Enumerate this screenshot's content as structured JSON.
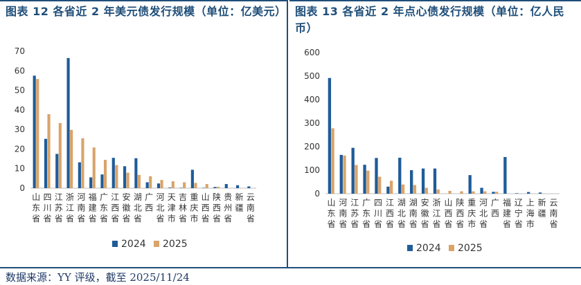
{
  "colors": {
    "series2024": "#1f5c99",
    "series2025": "#d9a46a",
    "accent": "#1f4e79"
  },
  "source": "数据来源：YY 评级，截至 2025/11/24",
  "chart_data": [
    {
      "type": "bar",
      "title": "图表 12 各省近 2 年美元债发行规模（单位：亿美元）",
      "xlabel": "",
      "ylabel": "",
      "ylim": [
        0,
        70
      ],
      "yticks": [
        0,
        10,
        20,
        30,
        40,
        50,
        60,
        70
      ],
      "legend_position": "bottom",
      "grid": false,
      "categories": [
        "山东省",
        "四川省",
        "江苏省",
        "浙江省",
        "河南省",
        "福建省",
        "广东省",
        "江西省",
        "安徽省",
        "湖北省",
        "广西",
        "河北省",
        "天津市",
        "吉林省",
        "重庆市",
        "山西省",
        "陕西省",
        "贵州省",
        "新疆",
        "云南省"
      ],
      "series": [
        {
          "name": "2024",
          "values": [
            57.5,
            25.2,
            17.5,
            66.5,
            13.2,
            5.5,
            7.0,
            15.5,
            11.2,
            15.3,
            3.0,
            2.4,
            0.3,
            0.2,
            9.4,
            0.2,
            0.6,
            2.1,
            1.5,
            0.9
          ]
        },
        {
          "name": "2025",
          "values": [
            55.8,
            37.8,
            33.3,
            29.8,
            25.5,
            20.8,
            14.5,
            11.8,
            7.9,
            6.8,
            6.1,
            4.2,
            3.5,
            3.0,
            2.7,
            2.1,
            0.7,
            0.0,
            0.0,
            0.0
          ]
        }
      ]
    },
    {
      "type": "bar",
      "title": "图表 13 各省近 2 年点心债发行规模（单位：亿人民币）",
      "xlabel": "",
      "ylabel": "",
      "ylim": [
        0,
        600
      ],
      "yticks": [
        0,
        100,
        200,
        300,
        400,
        500,
        600
      ],
      "legend_position": "bottom",
      "grid": false,
      "categories": [
        "山东省",
        "河南省",
        "江苏省",
        "广东省",
        "四川省",
        "江西省",
        "湖北省",
        "湖南省",
        "安徽省",
        "浙江省",
        "山西省",
        "陕西省",
        "重庆市",
        "河北省",
        "广西",
        "福建省",
        "辽宁省",
        "上海市",
        "新疆",
        "云南省"
      ],
      "series": [
        {
          "name": "2024",
          "values": [
            492,
            165,
            195,
            123,
            152,
            30,
            153,
            100,
            107,
            107,
            0,
            0,
            79,
            25,
            8,
            156,
            2,
            7,
            5,
            0
          ]
        },
        {
          "name": "2025",
          "values": [
            278,
            162,
            122,
            98,
            72,
            55,
            39,
            37,
            25,
            18,
            12,
            10,
            10,
            10,
            8,
            0,
            0,
            0,
            0,
            0
          ]
        }
      ]
    }
  ]
}
